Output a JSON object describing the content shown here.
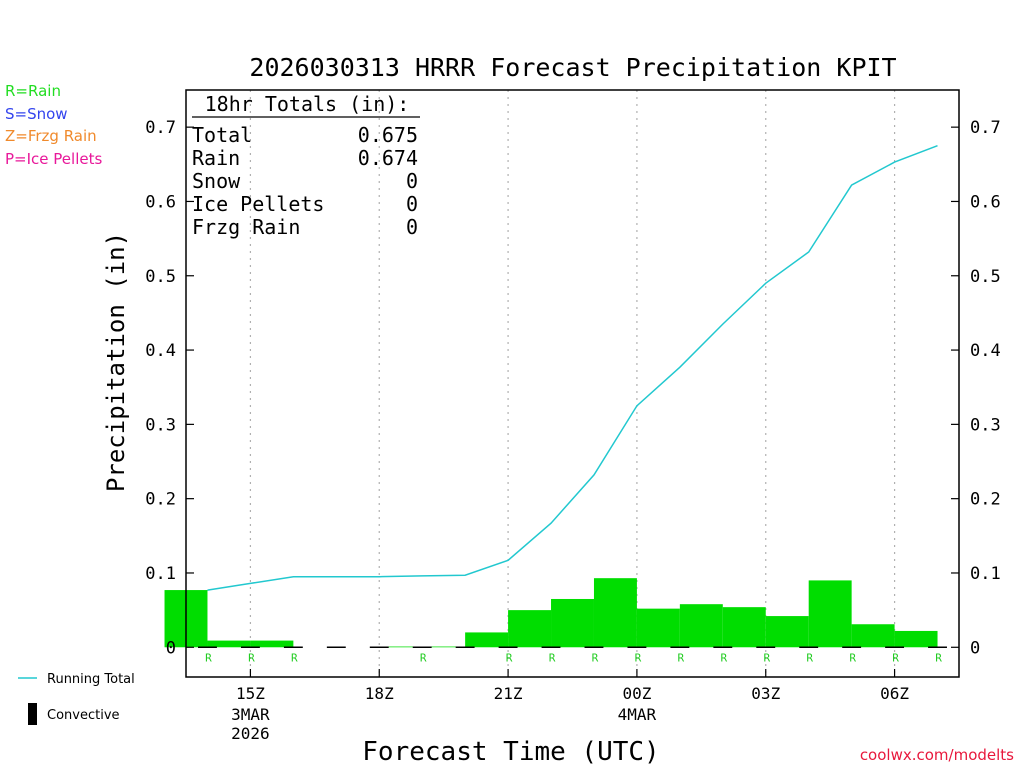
{
  "chart_data": {
    "type": "bar",
    "title": "2026030313 HRRR Forecast Precipitation KPIT",
    "xlabel": "Forecast Time (UTC)",
    "ylabel": "Precipitation (in)",
    "ylim": [
      -0.04,
      0.75
    ],
    "xlim": [
      13.5,
      31.5
    ],
    "y_ticks": [
      0,
      0.1,
      0.2,
      0.3,
      0.4,
      0.5,
      0.6,
      0.7
    ],
    "y_tick_labels": [
      "0",
      "0.1",
      "0.2",
      "0.3",
      "0.4",
      "0.5",
      "0.6",
      "0.7"
    ],
    "x_ticks": [
      {
        "x": 15,
        "label": "15Z",
        "sub": [
          "3MAR",
          "2026"
        ]
      },
      {
        "x": 18,
        "label": "18Z",
        "sub": []
      },
      {
        "x": 21,
        "label": "21Z",
        "sub": []
      },
      {
        "x": 24,
        "label": "00Z",
        "sub": [
          "4MAR"
        ]
      },
      {
        "x": 27,
        "label": "03Z",
        "sub": []
      },
      {
        "x": 30,
        "label": "06Z",
        "sub": []
      }
    ],
    "hourly_bars": {
      "name": "Hourly Precipitation (Rain)",
      "color": "#00dd00",
      "hours": [
        14,
        15,
        16,
        17,
        18,
        19,
        20,
        21,
        22,
        23,
        24,
        25,
        26,
        27,
        28,
        29,
        30,
        31
      ],
      "values": [
        0.077,
        0.009,
        0.009,
        0.0,
        0.0,
        0.001,
        0.001,
        0.02,
        0.05,
        0.065,
        0.093,
        0.052,
        0.058,
        0.054,
        0.042,
        0.09,
        0.031,
        0.022
      ],
      "type_codes": [
        "R",
        "R",
        "R",
        "",
        "",
        "R",
        "",
        "R",
        "R",
        "R",
        "R",
        "R",
        "R",
        "R",
        "R",
        "R",
        "R",
        "R"
      ]
    },
    "running_total": {
      "name": "Running Total",
      "color": "#22c8cf",
      "x": [
        14,
        15,
        16,
        17,
        18,
        19,
        20,
        21,
        22,
        23,
        24,
        25,
        26,
        27,
        28,
        29,
        30,
        31
      ],
      "values": [
        0.077,
        0.086,
        0.095,
        0.095,
        0.095,
        0.096,
        0.097,
        0.117,
        0.167,
        0.232,
        0.325,
        0.377,
        0.435,
        0.49,
        0.532,
        0.622,
        0.653,
        0.675
      ]
    },
    "totals_box": {
      "heading": "18hr Totals (in):",
      "rows": [
        {
          "label": "Total",
          "value": "0.675"
        },
        {
          "label": "Rain",
          "value": "0.674"
        },
        {
          "label": "Snow",
          "value": "0"
        },
        {
          "label": "Ice Pellets",
          "value": "0"
        },
        {
          "label": "Frzg Rain",
          "value": "0"
        }
      ]
    },
    "type_legend": [
      {
        "text": "R=Rain",
        "color": "#22dd22"
      },
      {
        "text": "S=Snow",
        "color": "#3344ee"
      },
      {
        "text": "Z=Frzg Rain",
        "color": "#f08a2c"
      },
      {
        "text": "P=Ice Pellets",
        "color": "#e8189a"
      }
    ],
    "series_legend": [
      {
        "text": "Running Total",
        "kind": "line",
        "color": "#22c8cf"
      },
      {
        "text": "Convective",
        "kind": "bar",
        "color": "#000000"
      }
    ]
  },
  "credit": "coolwx.com/modelts"
}
